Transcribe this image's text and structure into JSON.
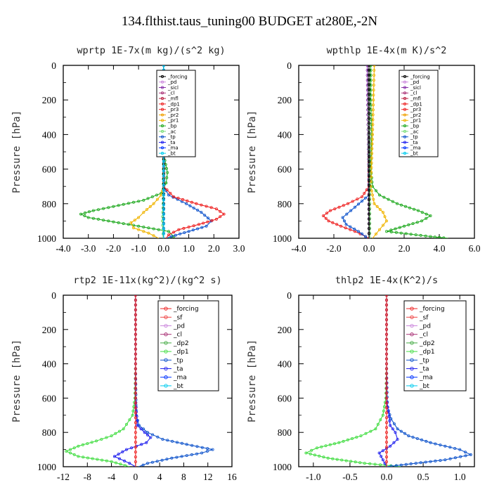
{
  "figure": {
    "title": "134.flthist.taus_tuning00  BUDGET at280E,-2N"
  },
  "chart_data": [
    {
      "type": "line",
      "title": "wprtp  1E-7x(m kg)/(s^2 kg)",
      "ylabel": "Pressure [hPa]",
      "xlim": [
        -4.0,
        3.0
      ],
      "ylim": [
        1000,
        0
      ],
      "xticks": [
        "-4.0",
        "-3.0",
        "-2.0",
        "-1.0",
        "0.0",
        "1.0",
        "2.0",
        "3.0"
      ],
      "yticks": [
        "0",
        "200",
        "400",
        "600",
        "800",
        "1000"
      ],
      "legend_entries": [
        "_forcing",
        "_pd",
        "_sicl",
        "_cl",
        "_mfl",
        "_dp1",
        "_pr3",
        "_pr2",
        "_pr1",
        "_bp",
        "_ac",
        "_tp",
        "_ta",
        "_ma",
        "_bt"
      ],
      "series": [
        {
          "name": "_bp",
          "color": "#22aa22",
          "y": [
            0,
            200,
            400,
            550,
            620,
            680,
            740,
            780,
            810,
            840,
            860,
            880,
            900,
            930,
            960,
            990,
            1000
          ],
          "x": [
            0.0,
            0.0,
            0.0,
            0.05,
            0.15,
            0.1,
            -0.1,
            -0.8,
            -1.8,
            -2.8,
            -3.3,
            -3.0,
            -2.2,
            -1.0,
            0.2,
            0.4,
            0.2
          ]
        },
        {
          "name": "_tp",
          "color": "#1155cc",
          "y": [
            0,
            400,
            700,
            750,
            800,
            850,
            900,
            930,
            960,
            990,
            1000
          ],
          "x": [
            0.0,
            0.0,
            0.0,
            0.2,
            0.9,
            1.5,
            1.9,
            1.7,
            1.0,
            0.3,
            0.1
          ]
        },
        {
          "name": "_pr1",
          "color": "#f0b400",
          "y": [
            0,
            400,
            700,
            750,
            800,
            850,
            880,
            910,
            940,
            970,
            1000
          ],
          "x": [
            0.0,
            0.0,
            0.0,
            -0.1,
            -0.4,
            -0.8,
            -1.0,
            -1.3,
            -1.2,
            -0.6,
            -0.2
          ]
        },
        {
          "name": "_dp1",
          "color": "#ee2222",
          "y": [
            0,
            400,
            700,
            760,
            800,
            830,
            860,
            890,
            920,
            950,
            980,
            1000
          ],
          "x": [
            0.0,
            0.0,
            0.0,
            0.4,
            1.3,
            2.1,
            2.4,
            2.1,
            1.4,
            0.6,
            0.2,
            0.1
          ]
        },
        {
          "name": "_ac",
          "color": "#77dd77",
          "y": [
            0,
            400,
            800,
            900,
            1000
          ],
          "x": [
            0.0,
            0.0,
            -0.03,
            -0.05,
            -0.02
          ]
        },
        {
          "name": "_forcing",
          "color": "#000000",
          "y": [
            0,
            200,
            400,
            600,
            800,
            1000
          ],
          "x": [
            0.0,
            0.0,
            0.0,
            0.0,
            0.0,
            0.0
          ]
        },
        {
          "name": "_ma",
          "color": "#0033ff",
          "y": [
            0,
            500,
            1000
          ],
          "x": [
            0.0,
            0.0,
            0.0
          ]
        },
        {
          "name": "_bt",
          "color": "#00ccee",
          "y": [
            0,
            500,
            1000
          ],
          "x": [
            0.0,
            0.0,
            0.0
          ]
        }
      ]
    },
    {
      "type": "line",
      "title": "wpthlp  1E-4x(m K)/s^2",
      "ylabel": "Pressure [hPa]",
      "xlim": [
        -4.0,
        6.0
      ],
      "ylim": [
        1000,
        0
      ],
      "xticks": [
        "-4.0",
        "-2.0",
        "0.0",
        "2.0",
        "4.0",
        "6.0"
      ],
      "yticks": [
        "0",
        "200",
        "400",
        "600",
        "800",
        "1000"
      ],
      "legend_entries": [
        "_forcing",
        "_pd",
        "_sicl",
        "_cl",
        "_mfl",
        "_dp1",
        "_pr3",
        "_pr2",
        "_pr1",
        "_bp",
        "_ac",
        "_tp",
        "_ta",
        "_ma",
        "_bt"
      ],
      "series": [
        {
          "name": "_bp",
          "color": "#22aa22",
          "y": [
            0,
            200,
            400,
            600,
            700,
            750,
            800,
            840,
            870,
            900,
            930,
            960,
            990,
            1000
          ],
          "x": [
            0.1,
            0.1,
            0.15,
            0.1,
            0.2,
            0.6,
            1.6,
            2.8,
            3.5,
            3.0,
            2.0,
            1.0,
            3.5,
            4.5
          ]
        },
        {
          "name": "_dp1",
          "color": "#ee2222",
          "y": [
            0,
            400,
            700,
            760,
            800,
            840,
            870,
            900,
            930,
            960,
            990,
            1000
          ],
          "x": [
            0.0,
            0.0,
            0.0,
            -0.4,
            -1.2,
            -2.2,
            -2.6,
            -2.3,
            -1.6,
            -0.8,
            -0.2,
            0.0
          ]
        },
        {
          "name": "_tp",
          "color": "#1155cc",
          "y": [
            0,
            400,
            750,
            820,
            880,
            920,
            960,
            990,
            1000
          ],
          "x": [
            0.0,
            0.0,
            0.0,
            -0.8,
            -1.5,
            -1.3,
            -0.6,
            -0.2,
            -0.1
          ]
        },
        {
          "name": "_pr1",
          "color": "#f0b400",
          "y": [
            0,
            200,
            400,
            700,
            800,
            850,
            900,
            950,
            1000
          ],
          "x": [
            0.3,
            0.25,
            0.2,
            0.1,
            0.3,
            0.8,
            1.0,
            0.6,
            0.2
          ]
        },
        {
          "name": "_sicl",
          "color": "#8833aa",
          "y": [
            0,
            200,
            400,
            600,
            800,
            1000
          ],
          "x": [
            -0.1,
            -0.08,
            -0.05,
            -0.02,
            0.0,
            0.0
          ]
        },
        {
          "name": "_ac",
          "color": "#77dd77",
          "y": [
            0,
            400,
            800,
            1000
          ],
          "x": [
            0.0,
            0.0,
            0.05,
            0.05
          ]
        },
        {
          "name": "_forcing",
          "color": "#000000",
          "y": [
            0,
            500,
            1000
          ],
          "x": [
            0.0,
            0.0,
            0.0
          ]
        }
      ]
    },
    {
      "type": "line",
      "title": "rtp2  1E-11x(kg^2)/(kg^2 s)",
      "ylabel": "Pressure [hPa]",
      "xlim": [
        -12,
        16
      ],
      "ylim": [
        1000,
        0
      ],
      "xticks": [
        "-12",
        "-8",
        "-4",
        "0",
        "4",
        "8",
        "12",
        "16"
      ],
      "yticks": [
        "0",
        "200",
        "400",
        "600",
        "800",
        "1000"
      ],
      "legend_entries": [
        "_forcing",
        "_sf",
        "_pd",
        "_cl",
        "_dp2",
        "_dp1",
        "_tp",
        "_ta",
        "_ma",
        "_bt"
      ],
      "series": [
        {
          "name": "_dp1",
          "color": "#44dd44",
          "y": [
            0,
            400,
            600,
            700,
            780,
            820,
            850,
            880,
            910,
            940,
            970,
            1000
          ],
          "x": [
            0.0,
            0.0,
            -0.1,
            -0.5,
            -2.0,
            -4.0,
            -6.5,
            -9.5,
            -11.5,
            -9.5,
            -4.0,
            -1.0
          ]
        },
        {
          "name": "_tp",
          "color": "#1155cc",
          "y": [
            0,
            400,
            700,
            760,
            800,
            840,
            870,
            900,
            920,
            950,
            980,
            1000
          ],
          "x": [
            0.0,
            0.0,
            0.1,
            0.6,
            2.0,
            4.5,
            8.5,
            12.8,
            11.0,
            6.0,
            2.0,
            0.5
          ]
        },
        {
          "name": "_ta",
          "color": "#2222ee",
          "y": [
            0,
            600,
            760,
            800,
            830,
            860,
            900,
            940,
            980,
            1000
          ],
          "x": [
            0.0,
            0.0,
            0.3,
            1.5,
            2.5,
            1.8,
            -1.5,
            -3.5,
            -1.0,
            0.0
          ]
        },
        {
          "name": "_forcing",
          "color": "#ee2222",
          "y": [
            0,
            200,
            400,
            600,
            800,
            1000
          ],
          "x": [
            0.0,
            0.0,
            0.0,
            0.0,
            0.0,
            0.0
          ]
        }
      ]
    },
    {
      "type": "line",
      "title": "thlp2  1E-4x(K^2)/s",
      "ylabel": "Pressure [hPa]",
      "xlim": [
        -1.2,
        1.2
      ],
      "ylim": [
        1000,
        0
      ],
      "xticks": [
        "-1.0",
        "-0.5",
        "0.0",
        "0.5",
        "1.0"
      ],
      "yticks": [
        "0",
        "200",
        "400",
        "600",
        "800",
        "1000"
      ],
      "legend_entries": [
        "_forcing",
        "_sf",
        "_pd",
        "_cl",
        "_dp2",
        "_dp1",
        "_tp",
        "_ta",
        "_ma",
        "_bt"
      ],
      "series": [
        {
          "name": "_dp1",
          "color": "#44dd44",
          "y": [
            0,
            400,
            600,
            700,
            780,
            820,
            860,
            890,
            920,
            950,
            980,
            1000
          ],
          "x": [
            0.0,
            0.0,
            -0.01,
            -0.05,
            -0.15,
            -0.35,
            -0.65,
            -0.95,
            -1.1,
            -0.8,
            -0.3,
            0.2
          ]
        },
        {
          "name": "_tp",
          "color": "#1155cc",
          "y": [
            0,
            400,
            650,
            720,
            780,
            820,
            860,
            900,
            930,
            960,
            990,
            1000
          ],
          "x": [
            0.0,
            0.0,
            0.01,
            0.06,
            0.15,
            0.3,
            0.6,
            1.0,
            1.15,
            0.8,
            0.2,
            0.0
          ]
        },
        {
          "name": "_ta",
          "color": "#2222ee",
          "y": [
            0,
            600,
            760,
            800,
            840,
            880,
            920,
            960,
            1000
          ],
          "x": [
            0.0,
            0.0,
            0.05,
            0.12,
            0.15,
            0.05,
            -0.1,
            -0.05,
            0.0
          ]
        },
        {
          "name": "_forcing",
          "color": "#ee2222",
          "y": [
            0,
            200,
            400,
            600,
            800,
            1000
          ],
          "x": [
            0.0,
            0.0,
            0.0,
            0.0,
            0.0,
            0.0
          ]
        }
      ]
    }
  ]
}
